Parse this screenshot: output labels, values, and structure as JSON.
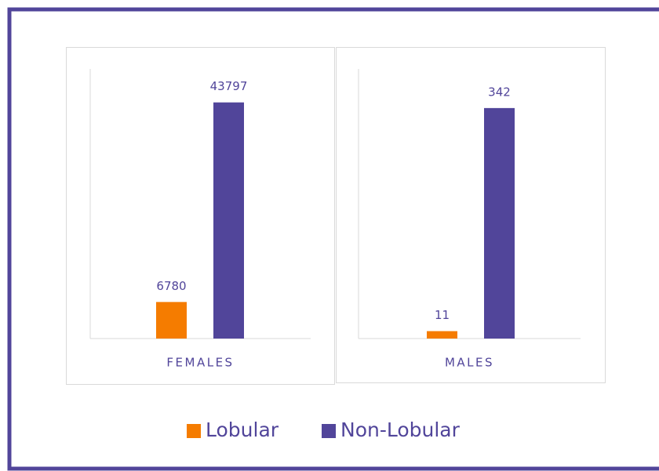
{
  "chart_data": [
    {
      "type": "bar",
      "categories": [
        "FEMALES"
      ],
      "series": [
        {
          "name": "Lobular",
          "color": "#f57c00",
          "values": [
            6780
          ]
        },
        {
          "name": "Non-Lobular",
          "color": "#51459a",
          "values": [
            43797
          ]
        }
      ],
      "ylim": [
        0,
        50000
      ]
    },
    {
      "type": "bar",
      "categories": [
        "MALES"
      ],
      "series": [
        {
          "color": "#f57c00",
          "values": [
            11
          ]
        },
        {
          "color": "#51459a",
          "values": [
            342
          ]
        }
      ],
      "ylim": [
        0,
        400
      ]
    }
  ]
}
